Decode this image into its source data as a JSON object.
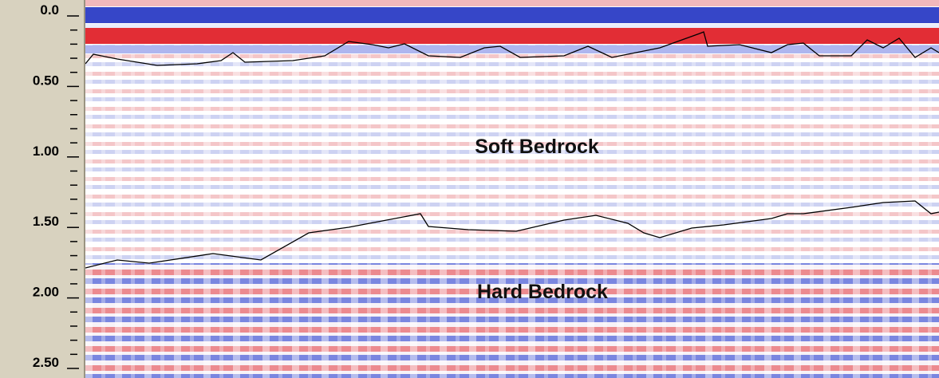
{
  "chart_data": {
    "type": "section",
    "ylim": [
      0,
      2.5
    ],
    "yticks": [
      {
        "value": 0,
        "label": "0.0"
      },
      {
        "value": 0.5,
        "label": "0.50"
      },
      {
        "value": 1,
        "label": "1.00"
      },
      {
        "value": 1.5,
        "label": "1.50"
      },
      {
        "value": 2,
        "label": "2.00"
      },
      {
        "value": 2.5,
        "label": "2.50"
      }
    ],
    "annotations": [
      "Soft Bedrock",
      "Hard Bedrock"
    ]
  }
}
